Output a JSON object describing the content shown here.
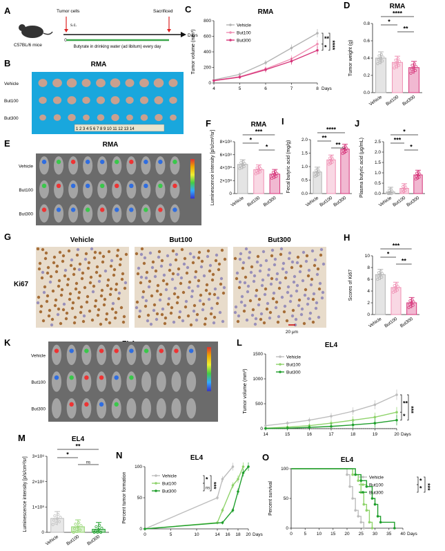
{
  "colors": {
    "vehicle": "#b3b3b3",
    "but100": "#ef8fb3",
    "but300": "#d6357a",
    "el_vehicle": "#bdbdbd",
    "el_but100": "#8fd36b",
    "el_but300": "#1e9e2b",
    "bg_tray": "#19a7dd",
    "axis": "#222222",
    "drink_line": "#3aa64a"
  },
  "panels": {
    "A": {
      "letter": "A",
      "strain": "C57BL/6 mice",
      "tumor_cells": "Tumor cells",
      "sc": "s.c.",
      "sacrificed": "Sacrificed",
      "day0": "0",
      "days": "Days",
      "treatment": "Butyrate in drinking water (ad libitum) every day"
    },
    "B": {
      "letter": "B",
      "title": "RMA",
      "rows": [
        "Vehicle",
        "But100",
        "But300"
      ],
      "ruler": "1 2 3 4 5 6 7 8 9 10 11 12 13 14"
    },
    "E": {
      "letter": "E",
      "title": "RMA",
      "rows": [
        "Vehicle",
        "But100",
        "But300"
      ]
    },
    "G": {
      "letter": "G",
      "stain": "Ki67",
      "cols": [
        "Vehicle",
        "But100",
        "But300"
      ],
      "scale": "20 μm"
    },
    "K": {
      "letter": "K",
      "title": "EL4",
      "rows": [
        "Vehicle",
        "But100",
        "But300"
      ]
    }
  },
  "chart_data": [
    {
      "id": "C",
      "letter": "C",
      "type": "line",
      "title": "RMA",
      "ylabel": "Tumor volume (mm³)",
      "xlabel": "Days",
      "x": [
        4,
        5,
        6,
        7,
        8
      ],
      "ylim": [
        0,
        800
      ],
      "yticks": [
        0,
        200,
        400,
        600,
        800
      ],
      "legend": [
        "Vehicle",
        "But100",
        "But300"
      ],
      "series": [
        {
          "name": "Vehicle",
          "values": [
            40,
            110,
            260,
            450,
            640
          ]
        },
        {
          "name": "But100",
          "values": [
            30,
            80,
            180,
            310,
            500
          ]
        },
        {
          "name": "But300",
          "values": [
            30,
            75,
            170,
            280,
            420
          ]
        }
      ],
      "sig": [
        "**",
        "*",
        "****"
      ]
    },
    {
      "id": "D",
      "letter": "D",
      "type": "bar",
      "title": "RMA",
      "ylabel": "Tumor weight (g)",
      "categories": [
        "Vehicle",
        "But100",
        "But300"
      ],
      "values": [
        0.4,
        0.35,
        0.29
      ],
      "ylim": [
        0,
        0.8
      ],
      "yticks": [
        "0.0",
        "0.2",
        "0.4",
        "0.6",
        "0.8"
      ],
      "sig": [
        "****",
        "*",
        "**"
      ]
    },
    {
      "id": "F",
      "letter": "F",
      "type": "bar",
      "title": "RMA",
      "ylabel": "Luminescence intensity [p/s/cm²/sr]",
      "categories": [
        "Vehicle",
        "But100",
        "But300"
      ],
      "values": [
        4.5,
        3.7,
        3.0
      ],
      "ylim": [
        0,
        8
      ],
      "yticks": [
        "0",
        "2×10⁸",
        "4×10⁸",
        "6×10⁸",
        "8×10⁸"
      ],
      "sig": [
        "***",
        "*",
        "*"
      ]
    },
    {
      "id": "I",
      "letter": "I",
      "type": "bar",
      "ylabel": "Fecal butyric acid (mg/g)",
      "categories": [
        "Vehicle",
        "But100",
        "But300"
      ],
      "values": [
        0.8,
        1.25,
        1.65
      ],
      "ylim": [
        0,
        2.0
      ],
      "yticks": [
        "0.0",
        "0.5",
        "1.0",
        "1.5",
        "2.0"
      ],
      "sig": [
        "****",
        "**",
        "**"
      ]
    },
    {
      "id": "J",
      "letter": "J",
      "type": "bar",
      "ylabel": "Plasma butyric acid (μg/mL)",
      "categories": [
        "Vehicle",
        "But100",
        "But300"
      ],
      "values": [
        0.08,
        0.25,
        0.9
      ],
      "ylim": [
        0,
        2.5
      ],
      "yticks": [
        "0.0",
        "0.5",
        "1.0",
        "1.5",
        "2.0",
        "2.5"
      ],
      "sig": [
        "*",
        "***",
        "*"
      ]
    },
    {
      "id": "H",
      "letter": "H",
      "type": "bar",
      "ylabel": "Scores of Ki67",
      "categories": [
        "Vehicle",
        "But100",
        "But300"
      ],
      "values": [
        6.8,
        4.6,
        2.0
      ],
      "ylim": [
        0,
        10
      ],
      "yticks": [
        "0",
        "2",
        "4",
        "6",
        "8",
        "10"
      ],
      "sig": [
        "***",
        "*",
        "**"
      ]
    },
    {
      "id": "L",
      "letter": "L",
      "type": "line",
      "title": "EL4",
      "ylabel": "Tumor volume (mm³)",
      "xlabel": "Days",
      "x": [
        14,
        15,
        16,
        17,
        18,
        19,
        20
      ],
      "ylim": [
        0,
        1500
      ],
      "yticks": [
        0,
        500,
        1000,
        1500
      ],
      "legend": [
        "Vehicle",
        "But100",
        "But300"
      ],
      "series": [
        {
          "name": "Vehicle",
          "values": [
            60,
            110,
            170,
            250,
            350,
            480,
            680
          ]
        },
        {
          "name": "But100",
          "values": [
            10,
            30,
            60,
            110,
            170,
            230,
            330
          ]
        },
        {
          "name": "But300",
          "values": [
            5,
            10,
            25,
            45,
            75,
            110,
            170
          ]
        }
      ],
      "sig": [
        "**",
        "*",
        "***"
      ]
    },
    {
      "id": "M",
      "letter": "M",
      "type": "bar",
      "title": "EL4",
      "ylabel": "Luminescence intensity [p/s/cm²/sr]",
      "categories": [
        "Vehicle",
        "But100",
        "But300"
      ],
      "values": [
        0.55,
        0.22,
        0.12
      ],
      "ylim": [
        0,
        3
      ],
      "yticks": [
        "0",
        "1×10⁸",
        "2×10⁸",
        "3×10⁸"
      ],
      "sig": [
        "**",
        "*",
        "ns"
      ]
    },
    {
      "id": "N",
      "letter": "N",
      "type": "line",
      "title": "EL4",
      "ylabel": "Percent tumor formation",
      "xlabel": "Days",
      "ylim": [
        0,
        100
      ],
      "yticks": [
        0,
        50,
        100
      ],
      "xticks": [
        0,
        5,
        10,
        14,
        16,
        18,
        20
      ],
      "legend": [
        "Vehicle",
        "But100",
        "But300"
      ],
      "series": [
        {
          "name": "Vehicle",
          "x": [
            0,
            14,
            15,
            17
          ],
          "values": [
            0,
            50,
            80,
            100
          ]
        },
        {
          "name": "But100",
          "x": [
            0,
            14,
            15,
            17,
            18,
            19
          ],
          "values": [
            0,
            10,
            30,
            70,
            80,
            100
          ]
        },
        {
          "name": "But300",
          "x": [
            0,
            15,
            17,
            18,
            19,
            20
          ],
          "values": [
            0,
            10,
            30,
            60,
            90,
            100
          ]
        }
      ],
      "sig": [
        "*",
        "ns",
        "***"
      ]
    },
    {
      "id": "O",
      "letter": "O",
      "type": "line",
      "title": "EL4",
      "ylabel": "Percent survival",
      "xlabel": "Days",
      "ylim": [
        0,
        100
      ],
      "yticks": [
        0,
        50,
        100
      ],
      "xticks": [
        0,
        5,
        10,
        15,
        20,
        25,
        30,
        35,
        40
      ],
      "legend": [
        "Vehicle",
        "But100",
        "But300"
      ],
      "series": [
        {
          "name": "Vehicle",
          "x": [
            0,
            20,
            21,
            22,
            23,
            24,
            25,
            26
          ],
          "values": [
            100,
            90,
            70,
            50,
            30,
            20,
            10,
            0
          ]
        },
        {
          "name": "But100",
          "x": [
            0,
            22,
            24,
            25,
            26,
            27,
            28,
            29
          ],
          "values": [
            100,
            90,
            80,
            60,
            40,
            30,
            10,
            0
          ]
        },
        {
          "name": "But300",
          "x": [
            0,
            23,
            25,
            27,
            29,
            30,
            31,
            32,
            37
          ],
          "values": [
            100,
            90,
            80,
            70,
            50,
            40,
            20,
            10,
            0
          ]
        }
      ],
      "sig": [
        "*",
        "*",
        "***"
      ]
    }
  ]
}
